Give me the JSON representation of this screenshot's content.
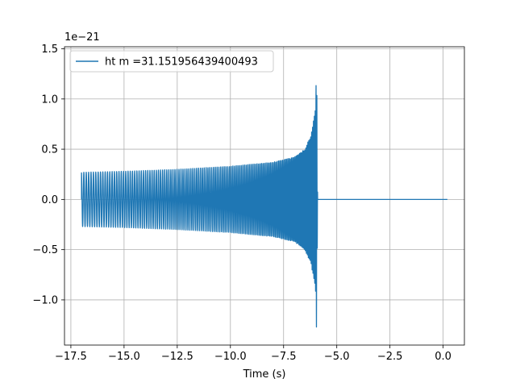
{
  "chart_data": {
    "type": "line",
    "title": "",
    "xlabel": "Time (s)",
    "ylabel": "",
    "y_scale_note": "1e−21",
    "xlim": [
      -17.8,
      1.0
    ],
    "ylim": [
      -1.45,
      1.52
    ],
    "grid": true,
    "legend_position": "top-left",
    "x_ticks": [
      -17.5,
      -15.0,
      -12.5,
      -10.0,
      -7.5,
      -5.0,
      -2.5,
      0.0
    ],
    "x_tick_labels": [
      "−17.5",
      "−15.0",
      "−12.5",
      "−10.0",
      "−7.5",
      "−5.0",
      "−2.5",
      "0.0"
    ],
    "y_ticks": [
      -1.0,
      -0.5,
      0.0,
      0.5,
      1.0,
      1.5
    ],
    "y_tick_labels": [
      "−1.0",
      "−0.5",
      "0.0",
      "0.5",
      "1.0",
      "1.5"
    ],
    "series": [
      {
        "name": "ht m =31.151956439400493",
        "color": "#1f77b4",
        "description_points": {
          "t_start": -17.0,
          "t_merger": -5.9,
          "t_end": 0.2,
          "amplitude_start": 0.27,
          "amplitude_peak_pos": 1.4,
          "amplitude_peak_neg": -1.32
        },
        "envelope": {
          "t": [
            -17.0,
            -15.0,
            -12.5,
            -10.0,
            -8.0,
            -7.0,
            -6.5,
            -6.2,
            -6.0,
            -5.95,
            -5.9
          ],
          "upper": [
            0.27,
            0.28,
            0.3,
            0.33,
            0.37,
            0.42,
            0.5,
            0.65,
            0.9,
            1.4,
            0.0
          ],
          "lower": [
            -0.27,
            -0.28,
            -0.3,
            -0.33,
            -0.37,
            -0.42,
            -0.5,
            -0.65,
            -0.9,
            -1.32,
            0.0
          ]
        },
        "tail": {
          "t": [
            -5.9,
            0.2
          ],
          "value": 0.0
        }
      }
    ]
  }
}
